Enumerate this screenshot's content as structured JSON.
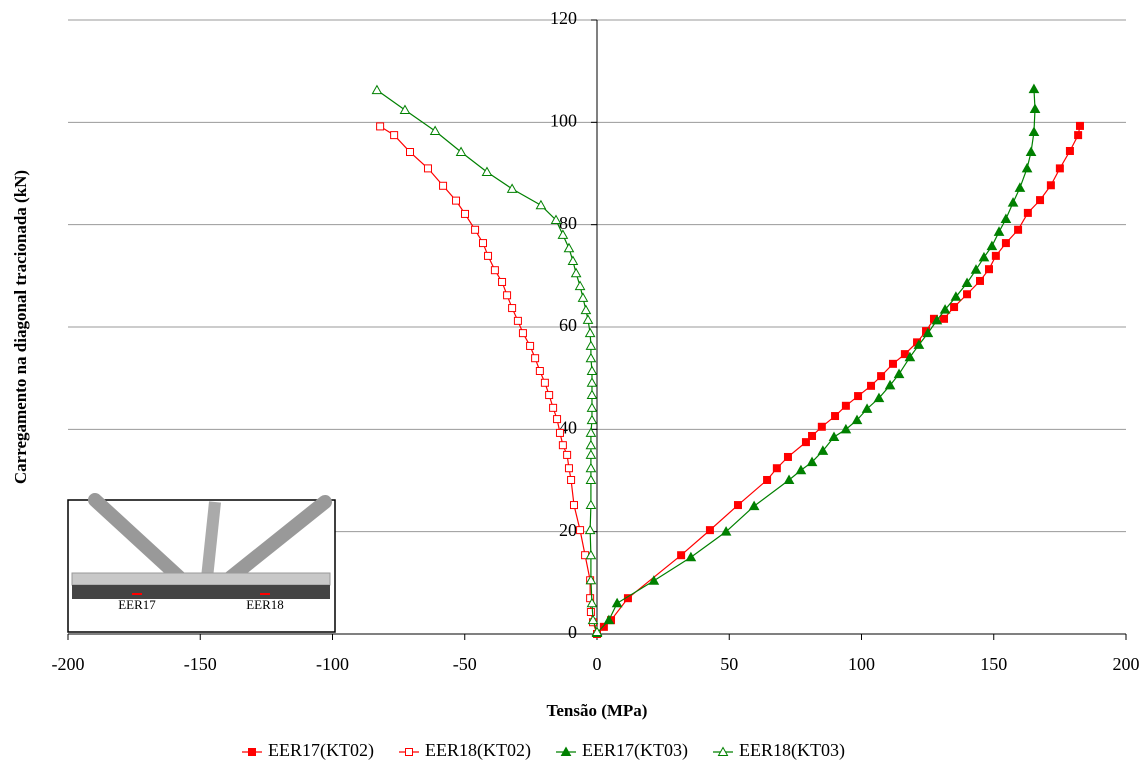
{
  "chart_data": {
    "type": "line",
    "xlabel": "Tensão (MPa)",
    "ylabel": "Carregamento na diagonal tracionada (kN)",
    "xlim": [
      -200,
      200
    ],
    "xticks": [
      -200,
      -150,
      -100,
      -50,
      0,
      50,
      100,
      150,
      200
    ],
    "ylim": [
      0,
      120
    ],
    "yticks": [
      0,
      20,
      40,
      60,
      80,
      100,
      120
    ],
    "grid": true,
    "inset_labels": [
      "EER17",
      "EER18"
    ],
    "series": [
      {
        "name": "EER17(KT02)",
        "color": "#ff0000",
        "marker": "square",
        "filled": true,
        "x": [
          0,
          2.6,
          5.3,
          11.7,
          31.8,
          42.7,
          53.3,
          64.3,
          68,
          72.2,
          79,
          81.3,
          85,
          90,
          94.1,
          98.7,
          103.6,
          107.4,
          111.9,
          116.4,
          121,
          124.4,
          127.4,
          131.2,
          135,
          139.9,
          144.8,
          148.2,
          150.8,
          154.6,
          159.2,
          162.9,
          167.5,
          171.6,
          175,
          178.8,
          181.9,
          182.6
        ],
        "values": [
          0,
          1.4,
          2.7,
          7,
          15.4,
          20.3,
          25.2,
          30.1,
          32.4,
          34.6,
          37.5,
          38.7,
          40.5,
          42.6,
          44.6,
          46.5,
          48.5,
          50.4,
          52.8,
          54.7,
          57,
          59.2,
          61.6,
          61.6,
          63.9,
          66.4,
          69,
          71.3,
          73.9,
          76.4,
          79,
          82.3,
          84.8,
          87.7,
          91,
          94.4,
          97.5,
          99.3
        ]
      },
      {
        "name": "EER18(KT02)",
        "color": "#ff0000",
        "marker": "square",
        "filled": false,
        "x": [
          0,
          -1.5,
          -2.3,
          -2.6,
          -2.6,
          -4.5,
          -6.4,
          -8.7,
          -9.8,
          -10.6,
          -11.3,
          -12.9,
          -14,
          -15.1,
          -16.6,
          -18.1,
          -19.7,
          -21.6,
          -23.4,
          -25.3,
          -28,
          -29.9,
          -32.1,
          -34,
          -35.9,
          -38.6,
          -41.2,
          -43.1,
          -46.1,
          -49.9,
          -53.3,
          -58.2,
          -63.9,
          -70.7,
          -76.7,
          -82
        ],
        "values": [
          0,
          2.3,
          4.3,
          7,
          10.5,
          15.4,
          20.3,
          25.2,
          30.1,
          32.4,
          35,
          36.9,
          39.3,
          42,
          44.2,
          46.7,
          49.1,
          51.4,
          53.9,
          56.3,
          58.8,
          61.2,
          63.7,
          66.2,
          68.8,
          71.1,
          73.9,
          76.4,
          79,
          82.1,
          84.7,
          87.6,
          91,
          94.2,
          97.5,
          99.2
        ]
      },
      {
        "name": "EER17(KT03)",
        "color": "#008000",
        "marker": "triangle",
        "filled": true,
        "x": [
          0,
          4.5,
          7.6,
          21.5,
          35.5,
          48.8,
          59.4,
          72.6,
          77.1,
          81.3,
          85.4,
          89.6,
          94.1,
          98.3,
          102.1,
          106.6,
          110.8,
          114.2,
          118.3,
          121.7,
          125.1,
          128.5,
          131.6,
          135.7,
          139.9,
          143.3,
          146.3,
          149.3,
          152,
          154.6,
          157.3,
          159.9,
          162.6,
          164.1,
          165.2,
          165.6,
          165.2
        ],
        "values": [
          0.2,
          2.7,
          6,
          10.4,
          15,
          20,
          25,
          30.1,
          32,
          33.6,
          35.8,
          38.5,
          40,
          41.8,
          44,
          46.1,
          48.6,
          50.8,
          54.1,
          56.5,
          58.8,
          61.3,
          63.4,
          65.9,
          68.6,
          71.2,
          73.6,
          75.8,
          78.6,
          81.1,
          84.3,
          87.2,
          91,
          94.2,
          98.1,
          102.6,
          106.5
        ]
      },
      {
        "name": "EER18(KT03)",
        "color": "#008000",
        "marker": "triangle",
        "filled": false,
        "x": [
          0,
          -1.5,
          -1.9,
          -2.3,
          -2.3,
          -2.6,
          -2.3,
          -2.3,
          -2.3,
          -2.3,
          -2.3,
          -2.3,
          -1.9,
          -1.9,
          -1.9,
          -1.9,
          -1.9,
          -2.3,
          -2.3,
          -2.6,
          -3.4,
          -4.2,
          -5.3,
          -6.4,
          -7.9,
          -9.1,
          -10.6,
          -12.9,
          -15.5,
          -21.2,
          -32.1,
          -41.6,
          -51.4,
          -61.2,
          -72.6,
          -83.2
        ],
        "values": [
          0.4,
          2.7,
          6,
          10.5,
          15.4,
          20.3,
          25.2,
          30.1,
          32.4,
          35,
          36.9,
          39.3,
          41.8,
          44.2,
          46.7,
          49.1,
          51.4,
          53.9,
          56.3,
          58.8,
          61.4,
          63.3,
          65.7,
          68,
          70.5,
          72.9,
          75.4,
          78,
          80.9,
          83.8,
          87,
          90.3,
          94.2,
          98.3,
          102.4,
          106.3
        ]
      }
    ]
  }
}
